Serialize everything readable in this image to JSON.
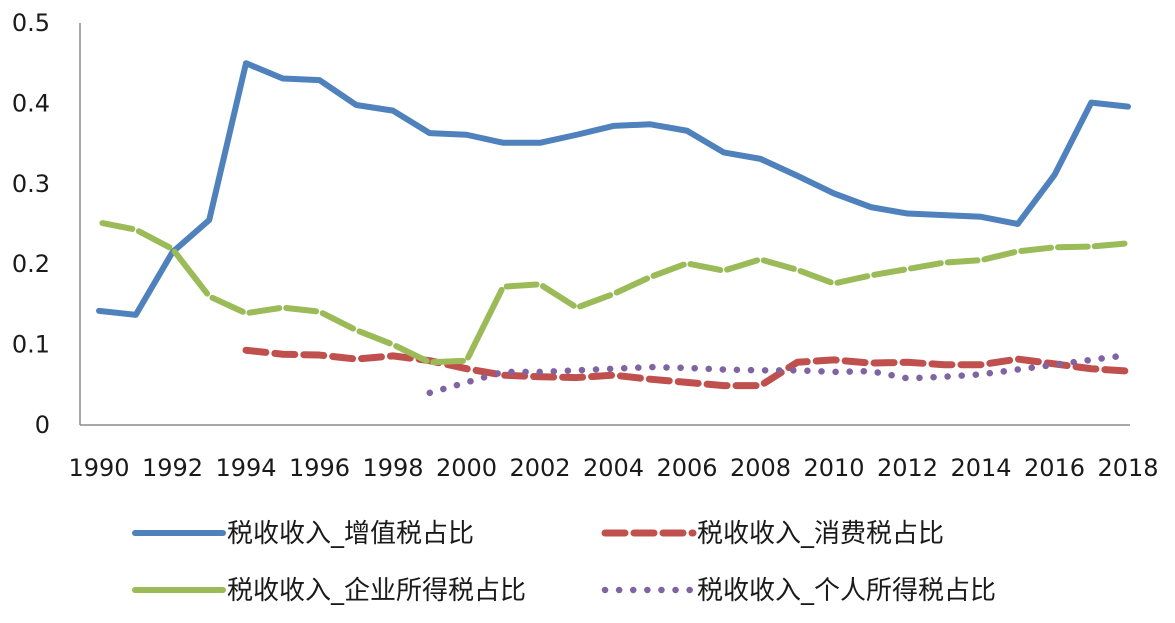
{
  "chart_data": {
    "type": "line",
    "title": "",
    "xlabel": "",
    "ylabel": "",
    "x_tick_labels": [
      "1990",
      "1992",
      "1994",
      "1996",
      "1998",
      "2000",
      "2002",
      "2004",
      "2006",
      "2008",
      "2010",
      "2012",
      "2014",
      "2016",
      "2018"
    ],
    "y_tick_labels": [
      "0",
      "0.1",
      "0.2",
      "0.3",
      "0.4",
      "0.5"
    ],
    "ylim": [
      0,
      0.5
    ],
    "xlim": [
      1990,
      2018
    ],
    "grid": false,
    "legend_position": "bottom",
    "x": [
      1990,
      1991,
      1992,
      1993,
      1994,
      1995,
      1996,
      1997,
      1998,
      1999,
      2000,
      2001,
      2002,
      2003,
      2004,
      2005,
      2006,
      2007,
      2008,
      2009,
      2010,
      2011,
      2012,
      2013,
      2014,
      2015,
      2016,
      2017,
      2018
    ],
    "series": [
      {
        "name": "税收收入_增值税占比",
        "color": "#4f81bd",
        "style": "solid",
        "values": [
          0.142,
          0.137,
          0.215,
          0.255,
          0.45,
          0.431,
          0.429,
          0.398,
          0.391,
          0.363,
          0.361,
          0.351,
          0.351,
          0.361,
          0.372,
          0.374,
          0.366,
          0.339,
          0.331,
          0.31,
          0.288,
          0.271,
          0.263,
          0.261,
          0.259,
          0.25,
          0.311,
          0.401,
          0.396
        ]
      },
      {
        "name": "税收收入_消费税占比",
        "color": "#c0504d",
        "style": "dashed",
        "values": [
          null,
          null,
          null,
          null,
          0.093,
          0.088,
          0.087,
          0.082,
          0.086,
          0.08,
          0.07,
          0.062,
          0.06,
          0.059,
          0.062,
          0.057,
          0.053,
          0.049,
          0.049,
          0.078,
          0.081,
          0.077,
          0.078,
          0.075,
          0.075,
          0.082,
          0.076,
          0.07,
          0.067
        ]
      },
      {
        "name": "税收收入_企业所得税占比",
        "color": "#9bbb59",
        "style": "solid-gaps",
        "values": [
          0.252,
          0.243,
          0.219,
          0.16,
          0.139,
          0.146,
          0.141,
          0.118,
          0.1,
          0.078,
          0.08,
          0.172,
          0.175,
          0.146,
          0.163,
          0.184,
          0.201,
          0.192,
          0.206,
          0.193,
          0.176,
          0.186,
          0.194,
          0.202,
          0.205,
          0.216,
          0.221,
          0.222,
          0.226
        ]
      },
      {
        "name": "税收收入_个人所得税占比",
        "color": "#8064a2",
        "style": "dotted",
        "values": [
          null,
          null,
          null,
          null,
          null,
          null,
          null,
          null,
          null,
          0.04,
          0.053,
          0.066,
          0.066,
          0.068,
          0.07,
          0.072,
          0.071,
          0.069,
          0.068,
          0.068,
          0.066,
          0.067,
          0.058,
          0.06,
          0.063,
          0.069,
          0.075,
          0.081,
          0.087
        ]
      }
    ]
  }
}
